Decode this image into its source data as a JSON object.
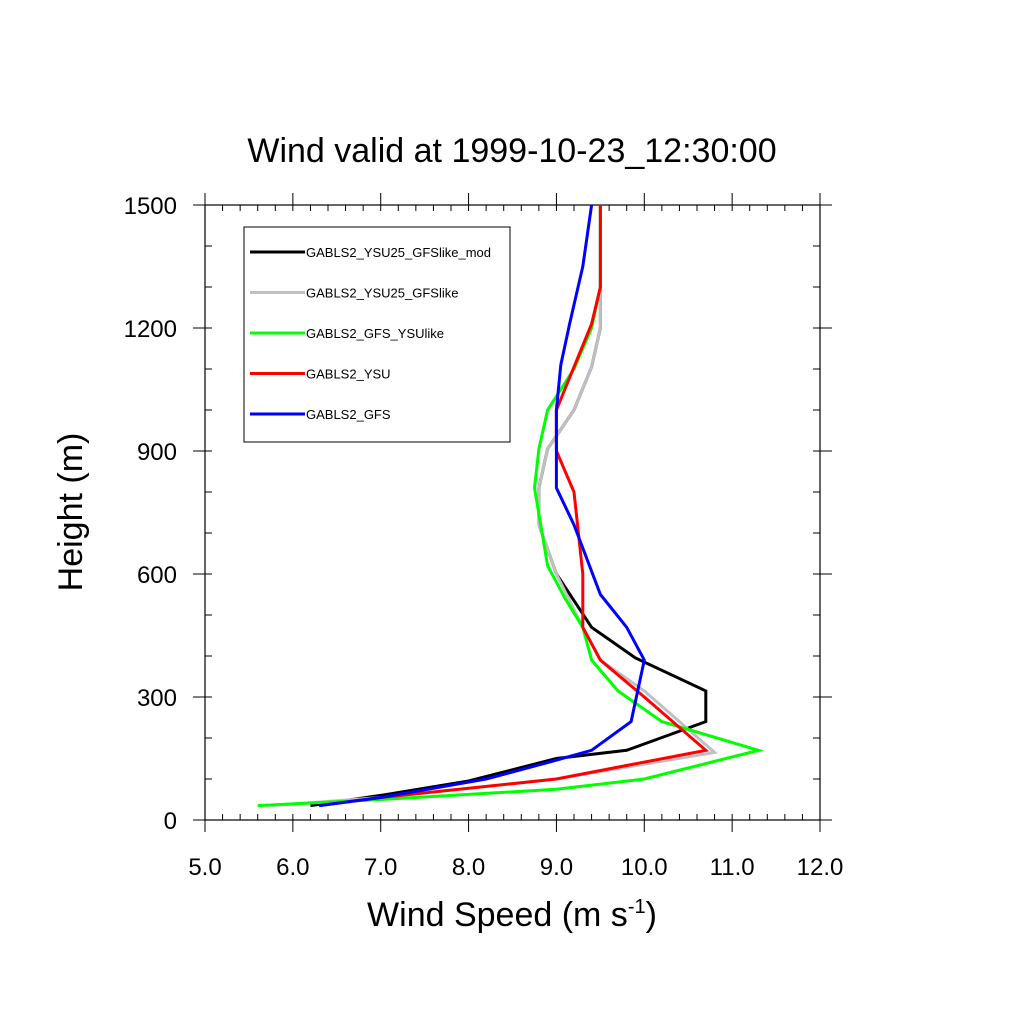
{
  "chart_data": {
    "type": "line",
    "title": "Wind valid at 1999-10-23_12:30:00",
    "xlabel": "Wind Speed (m s",
    "xlabel_superscript": "-1",
    "xlabel_close": ")",
    "ylabel": "Height (m)",
    "xlim": [
      5.0,
      12.0
    ],
    "ylim": [
      0,
      1500
    ],
    "x_ticks": [
      5.0,
      6.0,
      7.0,
      8.0,
      9.0,
      10.0,
      11.0,
      12.0
    ],
    "x_tick_labels": [
      "5.0",
      "6.0",
      "7.0",
      "8.0",
      "9.0",
      "10.0",
      "11.0",
      "12.0"
    ],
    "x_minor_step": 0.2,
    "y_ticks": [
      0,
      300,
      600,
      900,
      1200,
      1500
    ],
    "y_tick_labels": [
      "0",
      "300",
      "600",
      "900",
      "1200",
      "1500"
    ],
    "y_minor_step": 100,
    "grid": false,
    "legend_position": "top-left",
    "series": [
      {
        "name": "GABLS2_YSU25_GFSlike_mod",
        "color": "#000000",
        "x": [
          6.2,
          7.0,
          8.0,
          9.0,
          9.8,
          10.7,
          10.7,
          9.9,
          9.4,
          9.0,
          8.8,
          8.8,
          8.9,
          9.2,
          9.4,
          9.5,
          9.5,
          9.5
        ],
        "y": [
          35,
          60,
          95,
          150,
          170,
          240,
          315,
          395,
          470,
          600,
          720,
          810,
          905,
          1000,
          1105,
          1200,
          1300,
          1500
        ]
      },
      {
        "name": "GABLS2_YSU25_GFSlike",
        "color": "#c0c0c0",
        "x": [
          5.75,
          7.0,
          9.0,
          10.8,
          10.0,
          9.5,
          9.3,
          9.0,
          8.8,
          8.8,
          8.9,
          9.2,
          9.4,
          9.5,
          9.5,
          9.5
        ],
        "y": [
          35,
          55,
          100,
          165,
          315,
          390,
          470,
          600,
          720,
          810,
          905,
          1000,
          1105,
          1200,
          1300,
          1500
        ]
      },
      {
        "name": "GABLS2_GFS_YSUlike",
        "color": "#00ff00",
        "x": [
          5.6,
          7.0,
          9.0,
          10.0,
          11.3,
          10.2,
          9.7,
          9.4,
          9.3,
          9.1,
          8.9,
          8.75,
          8.8,
          8.9,
          9.2,
          9.4,
          9.5,
          9.5,
          9.5
        ],
        "y": [
          35,
          50,
          75,
          100,
          170,
          240,
          315,
          390,
          470,
          540,
          620,
          810,
          905,
          1000,
          1100,
          1200,
          1300,
          1400,
          1500
        ]
      },
      {
        "name": "GABLS2_YSU",
        "color": "#ff0000",
        "x": [
          6.3,
          7.0,
          9.0,
          10.7,
          10.0,
          9.5,
          9.3,
          9.3,
          9.2,
          9.0,
          9.0,
          9.4,
          9.5,
          9.5
        ],
        "y": [
          35,
          55,
          100,
          170,
          300,
          390,
          470,
          600,
          800,
          900,
          1000,
          1210,
          1300,
          1500
        ]
      },
      {
        "name": "GABLS2_GFS",
        "color": "#0000ff",
        "x": [
          6.3,
          7.0,
          8.2,
          8.9,
          9.4,
          9.85,
          10.0,
          9.8,
          9.5,
          9.2,
          9.0,
          9.0,
          9.05,
          9.15,
          9.3,
          9.4
        ],
        "y": [
          35,
          55,
          100,
          140,
          170,
          240,
          390,
          470,
          550,
          720,
          810,
          1000,
          1110,
          1210,
          1350,
          1500
        ]
      }
    ]
  }
}
